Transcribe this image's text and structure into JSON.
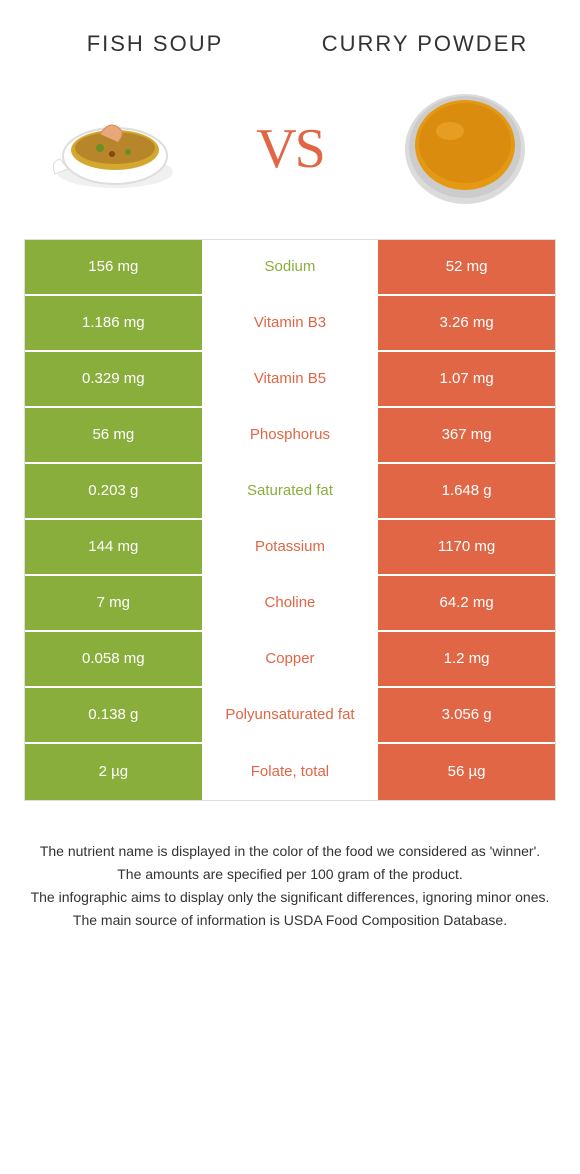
{
  "colors": {
    "left": "#8aae3c",
    "right": "#e06645",
    "background": "#ffffff"
  },
  "header": {
    "left_title": "Fish soup",
    "right_title": "Curry powder",
    "vs": "VS"
  },
  "rows": [
    {
      "left": "156 mg",
      "label": "Sodium",
      "right": "52 mg",
      "winner": "left"
    },
    {
      "left": "1.186 mg",
      "label": "Vitamin B3",
      "right": "3.26 mg",
      "winner": "right"
    },
    {
      "left": "0.329 mg",
      "label": "Vitamin B5",
      "right": "1.07 mg",
      "winner": "right"
    },
    {
      "left": "56 mg",
      "label": "Phosphorus",
      "right": "367 mg",
      "winner": "right"
    },
    {
      "left": "0.203 g",
      "label": "Saturated fat",
      "right": "1.648 g",
      "winner": "left"
    },
    {
      "left": "144 mg",
      "label": "Potassium",
      "right": "1170 mg",
      "winner": "right"
    },
    {
      "left": "7 mg",
      "label": "Choline",
      "right": "64.2 mg",
      "winner": "right"
    },
    {
      "left": "0.058 mg",
      "label": "Copper",
      "right": "1.2 mg",
      "winner": "right"
    },
    {
      "left": "0.138 g",
      "label": "Polyunsaturated fat",
      "right": "3.056 g",
      "winner": "right"
    },
    {
      "left": "2 µg",
      "label": "Folate, total",
      "right": "56 µg",
      "winner": "right"
    }
  ],
  "footer": {
    "line1": "The nutrient name is displayed in the color of the food we considered as 'winner'.",
    "line2": "The amounts are specified per 100 gram of the product.",
    "line3": "The infographic aims to display only the significant differences, ignoring minor ones.",
    "line4": "The main source of information is USDA Food Composition Database."
  }
}
